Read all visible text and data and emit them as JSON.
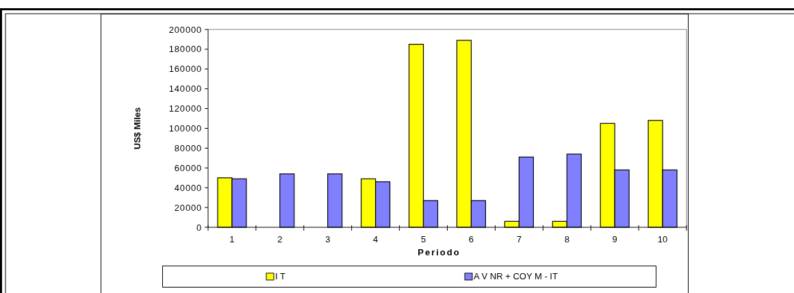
{
  "chart_data": {
    "type": "bar",
    "xlabel": "Periodo",
    "ylabel": "US$ Miles",
    "categories": [
      "1",
      "2",
      "3",
      "4",
      "5",
      "6",
      "7",
      "8",
      "9",
      "10"
    ],
    "series": [
      {
        "name": "I T",
        "color": "#ffff00",
        "values": [
          50000,
          null,
          null,
          49000,
          185000,
          189000,
          6000,
          6000,
          105000,
          108000
        ]
      },
      {
        "name": "A V NR + COY M - IT",
        "color": "#8080ff",
        "values": [
          49000,
          54000,
          54000,
          46000,
          27000,
          27000,
          71000,
          74000,
          58000,
          58000
        ]
      }
    ],
    "ylim": [
      0,
      200000
    ],
    "yticks": [
      0,
      20000,
      40000,
      60000,
      80000,
      100000,
      120000,
      140000,
      160000,
      180000,
      200000
    ],
    "legend": "bottom"
  }
}
